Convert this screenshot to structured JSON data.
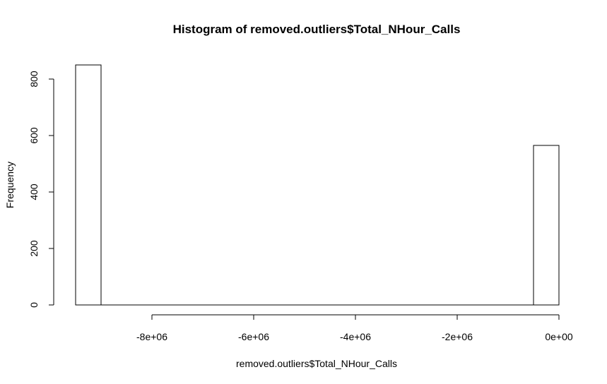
{
  "chart_data": {
    "type": "bar",
    "title": "Histogram of removed.outliers$Total_NHour_Calls",
    "xlabel": "removed.outliers$Total_NHour_Calls",
    "ylabel": "Frequency",
    "xlim": [
      -9500000,
      0
    ],
    "ylim": [
      0,
      850
    ],
    "x_ticks": [
      {
        "value": -8000000,
        "label": "-8e+06"
      },
      {
        "value": -6000000,
        "label": "-6e+06"
      },
      {
        "value": -4000000,
        "label": "-4e+06"
      },
      {
        "value": -2000000,
        "label": "-2e+06"
      },
      {
        "value": 0,
        "label": "0e+00"
      }
    ],
    "y_ticks": [
      {
        "value": 0,
        "label": "0"
      },
      {
        "value": 200,
        "label": "200"
      },
      {
        "value": 400,
        "label": "400"
      },
      {
        "value": 600,
        "label": "600"
      },
      {
        "value": 800,
        "label": "800"
      }
    ],
    "bins": [
      {
        "x0": -9500000,
        "x1": -9000000,
        "count": 850
      },
      {
        "x0": -9000000,
        "x1": -8500000,
        "count": 0
      },
      {
        "x0": -8500000,
        "x1": -8000000,
        "count": 0
      },
      {
        "x0": -8000000,
        "x1": -7500000,
        "count": 0
      },
      {
        "x0": -7500000,
        "x1": -7000000,
        "count": 0
      },
      {
        "x0": -7000000,
        "x1": -6500000,
        "count": 0
      },
      {
        "x0": -6500000,
        "x1": -6000000,
        "count": 0
      },
      {
        "x0": -6000000,
        "x1": -5500000,
        "count": 0
      },
      {
        "x0": -5500000,
        "x1": -5000000,
        "count": 0
      },
      {
        "x0": -5000000,
        "x1": -4500000,
        "count": 0
      },
      {
        "x0": -4500000,
        "x1": -4000000,
        "count": 0
      },
      {
        "x0": -4000000,
        "x1": -3500000,
        "count": 0
      },
      {
        "x0": -3500000,
        "x1": -3000000,
        "count": 0
      },
      {
        "x0": -3000000,
        "x1": -2500000,
        "count": 0
      },
      {
        "x0": -2500000,
        "x1": -2000000,
        "count": 0
      },
      {
        "x0": -2000000,
        "x1": -1500000,
        "count": 0
      },
      {
        "x0": -1500000,
        "x1": -1000000,
        "count": 0
      },
      {
        "x0": -1000000,
        "x1": -500000,
        "count": 0
      },
      {
        "x0": -500000,
        "x1": 0,
        "count": 565
      }
    ]
  }
}
